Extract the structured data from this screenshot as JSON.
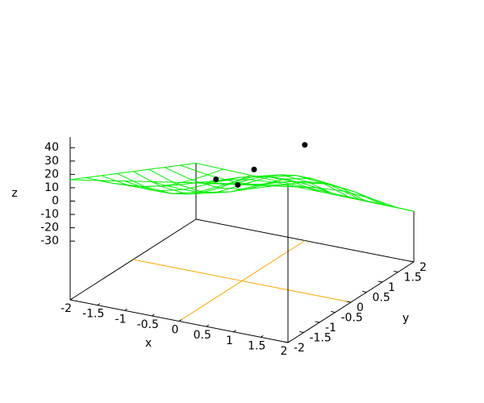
{
  "chart_data": {
    "type": "surface3d",
    "xlabel": "x",
    "ylabel": "y",
    "zlabel": "z",
    "xlim": [
      -2,
      2
    ],
    "ylim": [
      -2,
      2
    ],
    "zlim": [
      -74,
      48
    ],
    "xticks": [
      -2,
      -1.5,
      -1,
      -0.5,
      0,
      0.5,
      1,
      1.5,
      2
    ],
    "yticks": [
      -2,
      -1.5,
      -1,
      -0.5,
      0,
      0.5,
      1,
      1.5,
      2
    ],
    "zticks": [
      -30,
      -20,
      -10,
      0,
      10,
      20,
      30,
      40
    ],
    "zeroaxis": true,
    "zeroaxis_color": "#ffa500",
    "surface": {
      "color": "#00ee00",
      "x": [
        -2,
        -1.5,
        -1,
        -0.5,
        0,
        0.5,
        1,
        1.5,
        2
      ],
      "y": [
        -2,
        -1.5,
        -1,
        -0.5,
        0,
        0.5,
        1,
        1.5,
        2
      ],
      "z": [
        [
          16,
          19.5,
          23,
          26.5,
          30,
          33.5,
          37,
          40.5,
          44
        ],
        [
          10,
          9.8,
          11.4,
          15.8,
          22,
          28.3,
          32.6,
          34.3,
          34
        ],
        [
          4,
          0.5,
          0.5,
          5.5,
          14,
          22.5,
          27.5,
          27.5,
          24
        ],
        [
          -2,
          -7.8,
          -9.1,
          -3.8,
          6,
          15.8,
          21.1,
          19.8,
          14
        ],
        [
          -8,
          -15,
          -17,
          -12,
          -2,
          8,
          13,
          11,
          4
        ],
        [
          -14,
          -20.8,
          -23.1,
          -18.8,
          -10,
          -1.2,
          3.1,
          0.8,
          -6
        ],
        [
          -20,
          -25.5,
          -27.5,
          -24.5,
          -18,
          -11.5,
          -8.5,
          -10.5,
          -16
        ],
        [
          -26,
          -29.2,
          -30.6,
          -29.2,
          -26,
          -22.8,
          -21.4,
          -22.8,
          -26
        ],
        [
          -32,
          -32.5,
          -33,
          -33.5,
          -34,
          -34.5,
          -35,
          -35.5,
          -36
        ]
      ]
    },
    "points": {
      "color": "#000000",
      "x": [
        0.1,
        0.5,
        0.8,
        1.5
      ],
      "y": [
        -1,
        -1,
        -1,
        -0.6
      ],
      "z": [
        18,
        17,
        31,
        49
      ]
    }
  }
}
